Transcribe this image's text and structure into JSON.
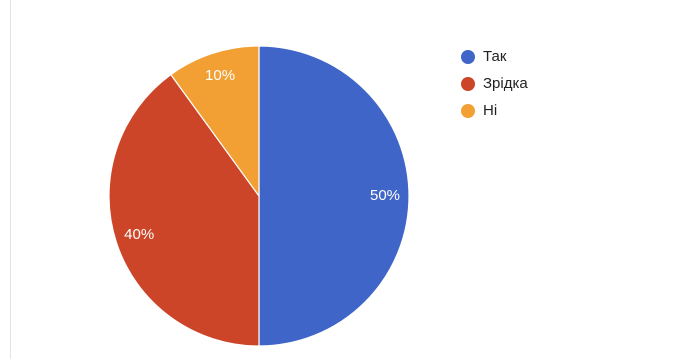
{
  "chart_data": {
    "type": "pie",
    "categories": [
      "Так",
      "Зрідка",
      "Ні"
    ],
    "values": [
      50,
      40,
      10
    ],
    "data_labels": [
      "50%",
      "40%",
      "10%"
    ],
    "colors": [
      "#3f65c9",
      "#cc4529",
      "#f2a033"
    ],
    "legend_position": "right"
  }
}
